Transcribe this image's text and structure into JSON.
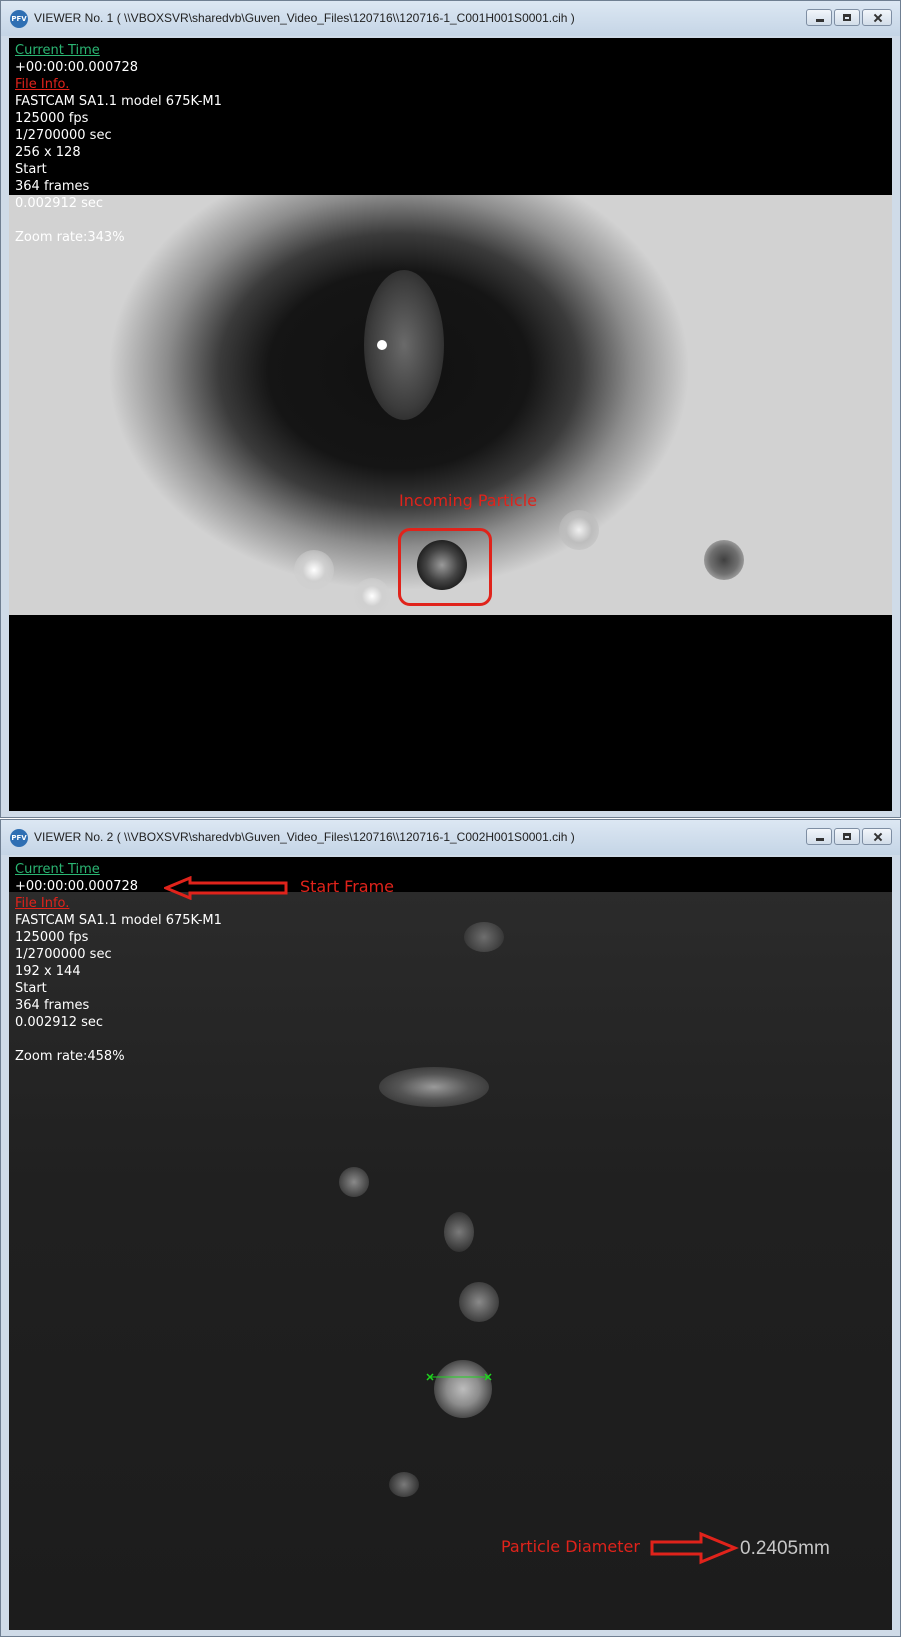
{
  "app_icon_text": "PFV",
  "viewer1": {
    "title": "VIEWER No. 1 ( \\\\VBOXSVR\\sharedvb\\Guven_Video_Files\\120716\\\\120716-1_C001H001S0001.cih )",
    "current_time_label": "Current Time",
    "current_time": "+00:00:00.000728",
    "file_info_label": "File Info.",
    "camera": "FASTCAM SA1.1 model 675K-M1",
    "fps": "125000 fps",
    "shutter": "1/2700000 sec",
    "resolution": "256 x 128",
    "trigger": "Start",
    "frames": "364 frames",
    "duration": "0.002912 sec",
    "zoom": "Zoom rate:343%",
    "annotation": "Incoming Particle"
  },
  "viewer2": {
    "title": "VIEWER No. 2 ( \\\\VBOXSVR\\sharedvb\\Guven_Video_Files\\120716\\\\120716-1_C002H001S0001.cih )",
    "current_time_label": "Current Time",
    "current_time": "+00:00:00.000728",
    "file_info_label": "File Info.",
    "camera": "FASTCAM SA1.1 model 675K-M1",
    "fps": "125000 fps",
    "shutter": "1/2700000 sec",
    "resolution": "192 x 144",
    "trigger": "Start",
    "frames": "364 frames",
    "duration": "0.002912 sec",
    "zoom": "Zoom rate:458%",
    "start_annotation": "Start Frame",
    "diameter_annotation": "Particle Diameter",
    "measurement": "0.2405mm"
  },
  "colors": {
    "annotation_red": "#e0231b",
    "current_time_green": "#2bb673",
    "measure_marker_green": "#1fd31f"
  },
  "icons": [
    "minimize-icon",
    "maximize-icon",
    "close-icon",
    "arrow-left-icon",
    "arrow-right-icon"
  ]
}
